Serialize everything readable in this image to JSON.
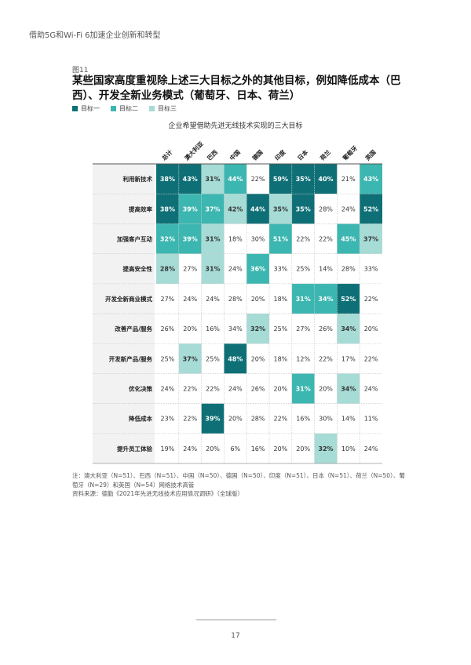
{
  "header": "借助5G和Wi-Fi 6加速企业创新和转型",
  "figure_label": "图11",
  "title": "某些国家高度重视除上述三大目标之外的其他目标，例如降低成本（巴西）、开发全新业务模式（葡萄牙、日本、荷兰）",
  "legend": [
    {
      "label": "目标一",
      "color": "#0e7076"
    },
    {
      "label": "目标二",
      "color": "#3cb6b0"
    },
    {
      "label": "目标三",
      "color": "#a6dbd6"
    }
  ],
  "chart_data": {
    "type": "heatmap",
    "title": "企业希望借助先进无线技术实现的三大目标",
    "columns": [
      "总计",
      "澳大利亚",
      "巴西",
      "中国",
      "德国",
      "印度",
      "日本",
      "荷兰",
      "葡萄牙",
      "英国"
    ],
    "rows": [
      {
        "label": "利用新技术",
        "values": [
          "38%",
          "43%",
          "31%",
          "44%",
          "22%",
          "59%",
          "35%",
          "40%",
          "21%",
          "43%"
        ],
        "ranks": [
          1,
          1,
          3,
          2,
          0,
          1,
          1,
          1,
          0,
          2
        ]
      },
      {
        "label": "提高效率",
        "values": [
          "38%",
          "39%",
          "37%",
          "42%",
          "44%",
          "35%",
          "35%",
          "28%",
          "24%",
          "52%"
        ],
        "ranks": [
          1,
          2,
          2,
          3,
          1,
          3,
          1,
          0,
          0,
          1
        ]
      },
      {
        "label": "加强客户互动",
        "values": [
          "32%",
          "39%",
          "31%",
          "18%",
          "30%",
          "51%",
          "22%",
          "22%",
          "45%",
          "37%"
        ],
        "ranks": [
          2,
          2,
          3,
          0,
          0,
          2,
          0,
          0,
          2,
          3
        ]
      },
      {
        "label": "提高安全性",
        "values": [
          "28%",
          "27%",
          "31%",
          "24%",
          "36%",
          "33%",
          "25%",
          "14%",
          "28%",
          "33%"
        ],
        "ranks": [
          3,
          0,
          3,
          0,
          2,
          0,
          0,
          0,
          0,
          0
        ]
      },
      {
        "label": "开发全新商业模式",
        "values": [
          "27%",
          "24%",
          "24%",
          "28%",
          "20%",
          "18%",
          "31%",
          "34%",
          "52%",
          "22%"
        ],
        "ranks": [
          0,
          0,
          0,
          0,
          0,
          0,
          2,
          2,
          1,
          0
        ]
      },
      {
        "label": "改善产品/服务",
        "values": [
          "26%",
          "20%",
          "16%",
          "34%",
          "32%",
          "25%",
          "27%",
          "26%",
          "34%",
          "20%"
        ],
        "ranks": [
          0,
          0,
          0,
          0,
          3,
          0,
          0,
          0,
          3,
          0
        ]
      },
      {
        "label": "开发新产品/服务",
        "values": [
          "25%",
          "37%",
          "25%",
          "48%",
          "20%",
          "18%",
          "12%",
          "22%",
          "17%",
          "22%"
        ],
        "ranks": [
          0,
          3,
          0,
          1,
          0,
          0,
          0,
          0,
          0,
          0
        ]
      },
      {
        "label": "优化决策",
        "values": [
          "24%",
          "22%",
          "22%",
          "24%",
          "26%",
          "20%",
          "31%",
          "20%",
          "34%",
          "24%"
        ],
        "ranks": [
          0,
          0,
          0,
          0,
          0,
          0,
          2,
          0,
          3,
          0
        ]
      },
      {
        "label": "降低成本",
        "values": [
          "23%",
          "22%",
          "39%",
          "20%",
          "28%",
          "22%",
          "16%",
          "30%",
          "14%",
          "11%"
        ],
        "ranks": [
          0,
          0,
          1,
          0,
          0,
          0,
          0,
          0,
          0,
          0
        ]
      },
      {
        "label": "提升员工体验",
        "values": [
          "19%",
          "24%",
          "20%",
          "6%",
          "16%",
          "20%",
          "20%",
          "32%",
          "10%",
          "24%"
        ],
        "ranks": [
          0,
          0,
          0,
          0,
          0,
          0,
          0,
          3,
          0,
          0
        ]
      }
    ]
  },
  "note": "注：澳大利亚（N=51）、巴西（N=51）、中国（N=50）、德国（N=50）、印度（N=51）、日本（N=51）、荷兰（N=50）、葡萄牙（N=29）和英国（N=54）网络技术高管",
  "source": "资料来源：德勤《2021年先进无线技术应用情况调研》（全球版）",
  "page_number": "17"
}
